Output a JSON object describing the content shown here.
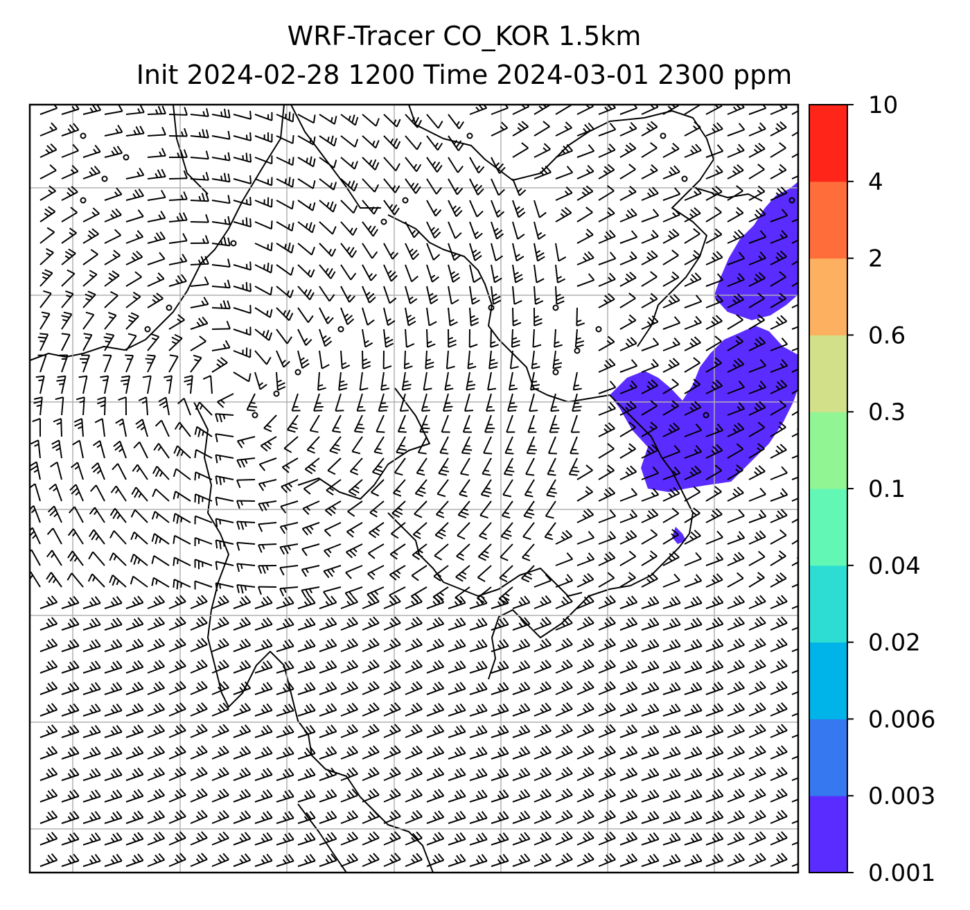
{
  "title": {
    "line1": "WRF-Tracer CO_KOR 1.5km",
    "line2": "Init 2024-02-28 1200 Time 2024-03-01 2300 ppm"
  },
  "colorbar": {
    "levels": [
      "0.001",
      "0.003",
      "0.006",
      "0.02",
      "0.04",
      "0.1",
      "0.3",
      "0.6",
      "2",
      "4",
      "10"
    ],
    "colors": [
      "#5a2cff",
      "#3578f0",
      "#00b3e8",
      "#2ddcd2",
      "#63f7b5",
      "#92f594",
      "#d2e08a",
      "#fdb05f",
      "#ff6d3a",
      "#ff2518"
    ]
  },
  "map": {
    "plume_color": "#5a2cff",
    "plume_level": "0.001",
    "gridlines": true,
    "coastline_color": "#000000",
    "barb_color": "#000000",
    "icons": [
      "wind-barb-icon",
      "calm-wind-circle-icon",
      "station-dot-icon"
    ]
  }
}
